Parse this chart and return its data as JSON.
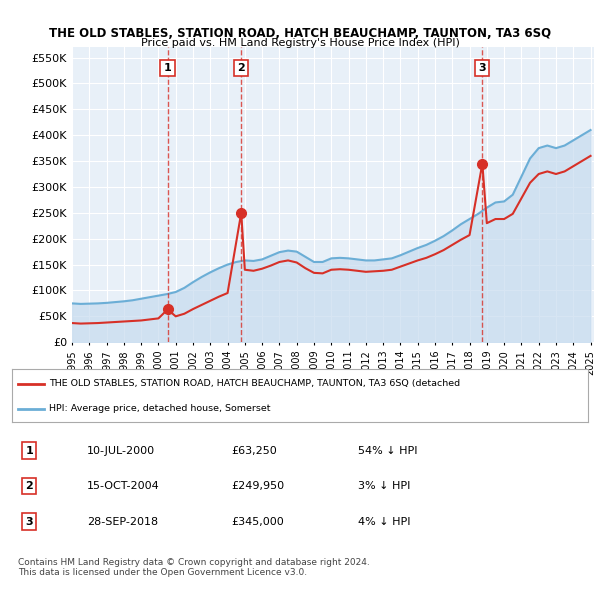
{
  "title": "THE OLD STABLES, STATION ROAD, HATCH BEAUCHAMP, TAUNTON, TA3 6SQ",
  "subtitle": "Price paid vs. HM Land Registry's House Price Index (HPI)",
  "ylim": [
    0,
    570000
  ],
  "yticks": [
    0,
    50000,
    100000,
    150000,
    200000,
    250000,
    300000,
    350000,
    400000,
    450000,
    500000,
    550000
  ],
  "ytick_labels": [
    "£0",
    "£50K",
    "£100K",
    "£150K",
    "£200K",
    "£250K",
    "£300K",
    "£350K",
    "£400K",
    "£450K",
    "£500K",
    "£550K"
  ],
  "background_color": "#ffffff",
  "plot_bg_color": "#e8f0f8",
  "grid_color": "#ffffff",
  "hpi_color": "#6baed6",
  "price_color": "#d73027",
  "hpi_fill_color": "#c6dbef",
  "sale_marker_color": "#d73027",
  "dashed_line_color": "#d73027",
  "legend_box_color": "#ffffff",
  "legend_border_color": "#cccccc",
  "transactions": [
    {
      "label": "1",
      "date_num": 2000.53,
      "price": 63250,
      "pct": "54%",
      "date_str": "10-JUL-2000"
    },
    {
      "label": "2",
      "date_num": 2004.79,
      "price": 249950,
      "pct": "3%",
      "date_str": "15-OCT-2004"
    },
    {
      "label": "3",
      "date_num": 2018.74,
      "price": 345000,
      "pct": "4%",
      "date_str": "28-SEP-2018"
    }
  ],
  "hpi_x": [
    1995,
    1995.5,
    1996,
    1996.5,
    1997,
    1997.5,
    1998,
    1998.5,
    1999,
    1999.5,
    2000,
    2000.5,
    2001,
    2001.5,
    2002,
    2002.5,
    2003,
    2003.5,
    2004,
    2004.5,
    2005,
    2005.5,
    2006,
    2006.5,
    2007,
    2007.5,
    2008,
    2008.5,
    2009,
    2009.5,
    2010,
    2010.5,
    2011,
    2011.5,
    2012,
    2012.5,
    2013,
    2013.5,
    2014,
    2014.5,
    2015,
    2015.5,
    2016,
    2016.5,
    2017,
    2017.5,
    2018,
    2018.5,
    2019,
    2019.5,
    2020,
    2020.5,
    2021,
    2021.5,
    2022,
    2022.5,
    2023,
    2023.5,
    2024,
    2024.5,
    2025
  ],
  "hpi_y": [
    75000,
    74000,
    74500,
    75000,
    76000,
    77500,
    79000,
    81000,
    84000,
    87000,
    90000,
    93000,
    97000,
    105000,
    116000,
    126000,
    135000,
    143000,
    150000,
    155000,
    158000,
    157000,
    160000,
    167000,
    174000,
    177000,
    175000,
    165000,
    155000,
    155000,
    162000,
    163000,
    162000,
    160000,
    158000,
    158000,
    160000,
    162000,
    168000,
    175000,
    182000,
    188000,
    196000,
    205000,
    216000,
    228000,
    238000,
    248000,
    260000,
    270000,
    272000,
    285000,
    320000,
    355000,
    375000,
    380000,
    375000,
    380000,
    390000,
    400000,
    410000
  ],
  "price_line_x": [
    1995,
    1995.5,
    1996,
    1996.5,
    1997,
    1997.5,
    1998,
    1998.5,
    1999,
    1999.5,
    2000,
    2000.53,
    2001,
    2001.5,
    2002,
    2002.5,
    2003,
    2003.5,
    2004,
    2004.79,
    2005,
    2005.5,
    2006,
    2006.5,
    2007,
    2007.5,
    2008,
    2008.5,
    2009,
    2009.5,
    2010,
    2010.5,
    2011,
    2011.5,
    2012,
    2012.5,
    2013,
    2013.5,
    2014,
    2014.5,
    2015,
    2015.5,
    2016,
    2016.5,
    2017,
    2017.5,
    2018,
    2018.74,
    2019,
    2019.5,
    2020,
    2020.5,
    2021,
    2021.5,
    2022,
    2022.5,
    2023,
    2023.5,
    2024,
    2024.5,
    2025
  ],
  "price_line_y": [
    37000,
    36000,
    36500,
    37000,
    38000,
    39000,
    40000,
    41000,
    42000,
    44000,
    46000,
    63250,
    50000,
    55000,
    64000,
    72000,
    80000,
    88000,
    95000,
    249950,
    140000,
    138000,
    142000,
    148000,
    155000,
    158000,
    154000,
    143000,
    134000,
    133000,
    140000,
    141000,
    140000,
    138000,
    136000,
    137000,
    138000,
    140000,
    146000,
    152000,
    158000,
    163000,
    170000,
    178000,
    188000,
    198000,
    207000,
    345000,
    230000,
    238000,
    238000,
    248000,
    278000,
    308000,
    325000,
    330000,
    325000,
    330000,
    340000,
    350000,
    360000
  ],
  "xtick_years": [
    1995,
    1996,
    1997,
    1998,
    1999,
    2000,
    2001,
    2002,
    2003,
    2004,
    2005,
    2006,
    2007,
    2008,
    2009,
    2010,
    2011,
    2012,
    2013,
    2014,
    2015,
    2016,
    2017,
    2018,
    2019,
    2020,
    2021,
    2022,
    2023,
    2024,
    2025
  ],
  "legend_label_red": "THE OLD STABLES, STATION ROAD, HATCH BEAUCHAMP, TAUNTON, TA3 6SQ (detached",
  "legend_label_blue": "HPI: Average price, detached house, Somerset",
  "table_rows": [
    [
      "1",
      "10-JUL-2000",
      "£63,250",
      "54% ↓ HPI"
    ],
    [
      "2",
      "15-OCT-2004",
      "£249,950",
      "3% ↓ HPI"
    ],
    [
      "3",
      "28-SEP-2018",
      "£345,000",
      "4% ↓ HPI"
    ]
  ],
  "footer": "Contains HM Land Registry data © Crown copyright and database right 2024.\nThis data is licensed under the Open Government Licence v3.0."
}
